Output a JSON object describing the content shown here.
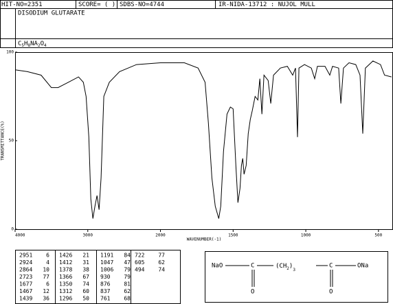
{
  "header": {
    "hit": "HIT-NO=2351",
    "score": "SCORE=  (   )",
    "sdbs": "SDBS-NO=4744",
    "ir": "IR-NIDA-13712 : NUJOL MULL",
    "name": "DISODIUM GLUTARATE",
    "formula": [
      "C",
      "5",
      "H",
      "8",
      "NA",
      "2",
      "O",
      "4"
    ]
  },
  "chart_data": {
    "type": "line",
    "x_label": "WAVENUMBER(-1)",
    "y_label": "TRANSMITTANCE(%)",
    "color": "#000000",
    "xlim": [
      4000,
      400
    ],
    "ylim": [
      0,
      100
    ],
    "xticks": [
      4000,
      3000,
      2000,
      1500,
      1000,
      500
    ],
    "yticks": [
      0,
      50,
      100
    ],
    "x_break": 2000,
    "x_break_factor": 2,
    "x": [
      4000,
      3831,
      3643,
      3502,
      3408,
      3268,
      3127,
      3061,
      3023,
      2986,
      2958,
      2930,
      2901,
      2873,
      2845,
      2817,
      2779,
      2742,
      2704,
      2563,
      2329,
      2000,
      1835,
      1741,
      1693,
      1670,
      1646,
      1623,
      1599,
      1585,
      1566,
      1542,
      1519,
      1500,
      1481,
      1467,
      1453,
      1443,
      1434,
      1425,
      1410,
      1396,
      1382,
      1368,
      1349,
      1330,
      1316,
      1302,
      1288,
      1259,
      1241,
      1222,
      1175,
      1127,
      1090,
      1071,
      1057,
      1047,
      1009,
      962,
      939,
      920,
      868,
      835,
      816,
      774,
      759,
      741,
      703,
      656,
      627,
      608,
      590,
      538,
      486,
      458,
      410
    ],
    "values": [
      90,
      89,
      87,
      80,
      80,
      83,
      86,
      83,
      75,
      52,
      17,
      6,
      13,
      19,
      11,
      29,
      75,
      79,
      83,
      89,
      93,
      94,
      94,
      91,
      83,
      60,
      29,
      13,
      6,
      13,
      44,
      65,
      69,
      68,
      36,
      15,
      23,
      36,
      40,
      31,
      36,
      54,
      62,
      67,
      75,
      73,
      85,
      65,
      87,
      84,
      71,
      87,
      91,
      92,
      87,
      91,
      52,
      91,
      93,
      91,
      85,
      92,
      92,
      87,
      92,
      91,
      71,
      91,
      94,
      93,
      87,
      54,
      91,
      95,
      93,
      87,
      86
    ]
  },
  "peak_table": [
    [
      [
        2951,
        6
      ],
      [
        2924,
        4
      ],
      [
        2864,
        10
      ],
      [
        2723,
        77
      ],
      [
        1677,
        6
      ],
      [
        1467,
        12
      ],
      [
        1439,
        36
      ]
    ],
    [
      [
        1426,
        21
      ],
      [
        1412,
        31
      ],
      [
        1378,
        38
      ],
      [
        1366,
        67
      ],
      [
        1350,
        74
      ],
      [
        1312,
        60
      ],
      [
        1296,
        50
      ]
    ],
    [
      [
        1191,
        84
      ],
      [
        1047,
        47
      ],
      [
        1006,
        79
      ],
      [
        930,
        79
      ],
      [
        876,
        81
      ],
      [
        837,
        62
      ],
      [
        761,
        68
      ]
    ],
    [
      [
        722,
        77
      ],
      [
        605,
        62
      ],
      [
        494,
        74
      ]
    ]
  ],
  "structure": {
    "left": "NaO",
    "carbon": [
      "C",
      "C"
    ],
    "chain": "(CH",
    "chain_sub": "2",
    "chain_close": ")",
    "chain_count": "3",
    "right": "ONa",
    "oxygen": [
      "O",
      "O"
    ]
  }
}
